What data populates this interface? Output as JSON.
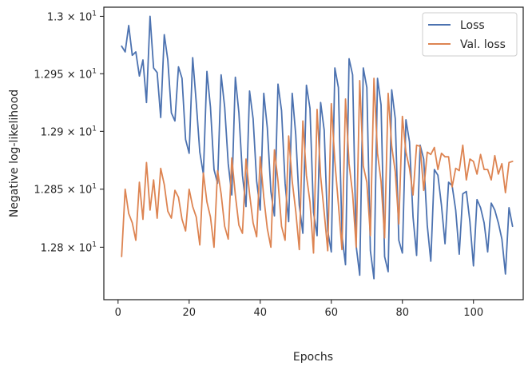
{
  "chart_data": {
    "type": "line",
    "xlabel": "Epochs",
    "ylabel": "Negative log-likelihood",
    "y_scale": "log",
    "xlim": [
      -4,
      114
    ],
    "ylim": [
      12.755,
      13.008
    ],
    "x_ticks": [
      0,
      20,
      40,
      60,
      80,
      100
    ],
    "y_ticks": [
      {
        "value": 13.0,
        "mantissa": "1.3",
        "exponent": "1"
      },
      {
        "value": 12.95,
        "mantissa": "1.295",
        "exponent": "1"
      },
      {
        "value": 12.9,
        "mantissa": "1.29",
        "exponent": "1"
      },
      {
        "value": 12.85,
        "mantissa": "1.285",
        "exponent": "1"
      },
      {
        "value": 12.8,
        "mantissa": "1.28",
        "exponent": "1"
      }
    ],
    "tick_base": "10",
    "tick_times": "×",
    "grid": false,
    "legend_position": "top-right",
    "series": [
      {
        "name": "Loss",
        "color": "#4c72b0",
        "values": [
          12.974,
          12.969,
          12.992,
          12.966,
          12.969,
          12.948,
          12.962,
          12.925,
          13.0,
          12.955,
          12.951,
          12.912,
          12.984,
          12.962,
          12.916,
          12.909,
          12.956,
          12.946,
          12.893,
          12.881,
          12.964,
          12.925,
          12.882,
          12.863,
          12.952,
          12.921,
          12.867,
          12.855,
          12.949,
          12.921,
          12.872,
          12.845,
          12.947,
          12.916,
          12.862,
          12.835,
          12.935,
          12.911,
          12.857,
          12.832,
          12.933,
          12.903,
          12.848,
          12.827,
          12.941,
          12.918,
          12.855,
          12.822,
          12.933,
          12.897,
          12.836,
          12.812,
          12.94,
          12.92,
          12.83,
          12.81,
          12.925,
          12.901,
          12.814,
          12.796,
          12.955,
          12.938,
          12.81,
          12.785,
          12.963,
          12.949,
          12.801,
          12.776,
          12.955,
          12.938,
          12.797,
          12.773,
          12.946,
          12.923,
          12.792,
          12.779,
          12.936,
          12.911,
          12.806,
          12.795,
          12.91,
          12.891,
          12.826,
          12.793,
          12.888,
          12.876,
          12.819,
          12.788,
          12.867,
          12.862,
          12.836,
          12.803,
          12.856,
          12.853,
          12.832,
          12.794,
          12.846,
          12.848,
          12.822,
          12.784,
          12.841,
          12.834,
          12.821,
          12.796,
          12.838,
          12.832,
          12.821,
          12.807,
          12.777,
          12.834,
          12.818
        ]
      },
      {
        "name": "Val. loss",
        "color": "#dd8452",
        "values": [
          12.792,
          12.85,
          12.829,
          12.821,
          12.806,
          12.856,
          12.824,
          12.873,
          12.832,
          12.858,
          12.825,
          12.868,
          12.854,
          12.831,
          12.825,
          12.849,
          12.843,
          12.824,
          12.814,
          12.85,
          12.835,
          12.826,
          12.802,
          12.864,
          12.839,
          12.826,
          12.8,
          12.866,
          12.846,
          12.818,
          12.807,
          12.877,
          12.845,
          12.819,
          12.812,
          12.876,
          12.846,
          12.821,
          12.809,
          12.878,
          12.843,
          12.816,
          12.8,
          12.884,
          12.857,
          12.818,
          12.806,
          12.896,
          12.857,
          12.831,
          12.798,
          12.909,
          12.862,
          12.839,
          12.795,
          12.919,
          12.861,
          12.83,
          12.797,
          12.924,
          12.874,
          12.837,
          12.798,
          12.928,
          12.872,
          12.846,
          12.8,
          12.944,
          12.87,
          12.856,
          12.81,
          12.946,
          12.881,
          12.857,
          12.808,
          12.933,
          12.887,
          12.865,
          12.82,
          12.913,
          12.882,
          12.868,
          12.845,
          12.888,
          12.887,
          12.849,
          12.882,
          12.88,
          12.886,
          12.867,
          12.881,
          12.878,
          12.878,
          12.852,
          12.868,
          12.866,
          12.888,
          12.858,
          12.876,
          12.874,
          12.863,
          12.88,
          12.867,
          12.867,
          12.858,
          12.879,
          12.863,
          12.872,
          12.847,
          12.873,
          12.874
        ]
      }
    ]
  }
}
